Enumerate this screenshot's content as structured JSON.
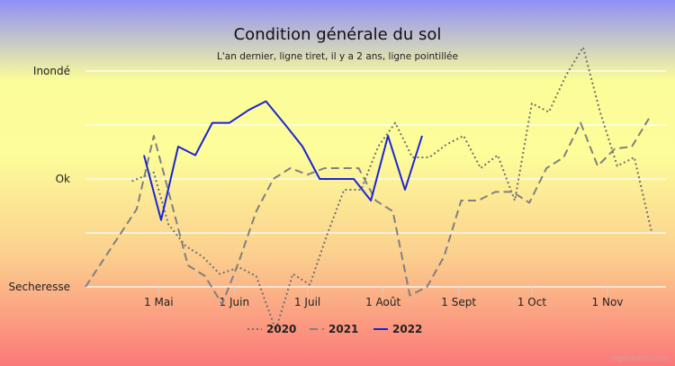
{
  "chart_data": {
    "type": "line",
    "title": "Condition générale du sol",
    "subtitle": "L'an dernier, ligne tiret, il y a 2 ans, ligne pointillée",
    "credit": "Highcharts.com",
    "y_categories": [
      "Inondé",
      "Ok",
      "Secheresse"
    ],
    "ylim": [
      -1,
      1
    ],
    "xlim": [
      "2022-04-01",
      "2022-11-25"
    ],
    "x_tick_labels": [
      "1 Mai",
      "1 Juin",
      "1 Juil",
      "1 Août",
      "1 Sept",
      "1 Oct",
      "1 Nov"
    ],
    "x_tick_dates": [
      "2022-05-01",
      "2022-06-01",
      "2022-07-01",
      "2022-08-01",
      "2022-09-01",
      "2022-10-01",
      "2022-11-01"
    ],
    "grid": true,
    "legend_position": "bottom-center",
    "series": [
      {
        "name": "2020",
        "style": "dotted",
        "color": "#707070",
        "points": [
          [
            "2022-04-20",
            -0.02
          ],
          [
            "2022-04-29",
            0.06
          ],
          [
            "2022-05-05",
            -0.42
          ],
          [
            "2022-05-12",
            -0.62
          ],
          [
            "2022-05-19",
            -0.72
          ],
          [
            "2022-05-26",
            -0.88
          ],
          [
            "2022-06-03",
            -0.82
          ],
          [
            "2022-06-10",
            -0.9
          ],
          [
            "2022-06-18",
            -1.4
          ],
          [
            "2022-06-25",
            -0.88
          ],
          [
            "2022-07-02",
            -0.98
          ],
          [
            "2022-07-09",
            -0.52
          ],
          [
            "2022-07-16",
            -0.1
          ],
          [
            "2022-07-23",
            -0.1
          ],
          [
            "2022-07-30",
            0.3
          ],
          [
            "2022-08-06",
            0.52
          ],
          [
            "2022-08-13",
            0.2
          ],
          [
            "2022-08-20",
            0.2
          ],
          [
            "2022-08-27",
            0.32
          ],
          [
            "2022-09-03",
            0.4
          ],
          [
            "2022-09-10",
            0.1
          ],
          [
            "2022-09-17",
            0.22
          ],
          [
            "2022-09-24",
            -0.2
          ],
          [
            "2022-10-01",
            0.7
          ],
          [
            "2022-10-08",
            0.62
          ],
          [
            "2022-10-15",
            0.96
          ],
          [
            "2022-10-22",
            1.22
          ],
          [
            "2022-10-29",
            0.62
          ],
          [
            "2022-11-05",
            0.12
          ],
          [
            "2022-11-12",
            0.2
          ],
          [
            "2022-11-19",
            -0.48
          ]
        ]
      },
      {
        "name": "2021",
        "style": "dashed",
        "color": "#808080",
        "points": [
          [
            "2022-04-01",
            -1.0
          ],
          [
            "2022-04-08",
            -0.76
          ],
          [
            "2022-04-15",
            -0.52
          ],
          [
            "2022-04-22",
            -0.28
          ],
          [
            "2022-04-29",
            0.4
          ],
          [
            "2022-05-06",
            -0.2
          ],
          [
            "2022-05-13",
            -0.8
          ],
          [
            "2022-05-20",
            -0.9
          ],
          [
            "2022-05-27",
            -1.16
          ],
          [
            "2022-06-03",
            -0.76
          ],
          [
            "2022-06-10",
            -0.3
          ],
          [
            "2022-06-17",
            0.0
          ],
          [
            "2022-06-24",
            0.1
          ],
          [
            "2022-07-01",
            0.04
          ],
          [
            "2022-07-08",
            0.1
          ],
          [
            "2022-07-15",
            0.1
          ],
          [
            "2022-07-22",
            0.1
          ],
          [
            "2022-07-29",
            -0.2
          ],
          [
            "2022-08-05",
            -0.3
          ],
          [
            "2022-08-12",
            -1.08
          ],
          [
            "2022-08-19",
            -1.0
          ],
          [
            "2022-08-26",
            -0.72
          ],
          [
            "2022-09-02",
            -0.2
          ],
          [
            "2022-09-09",
            -0.2
          ],
          [
            "2022-09-16",
            -0.12
          ],
          [
            "2022-09-23",
            -0.12
          ],
          [
            "2022-09-30",
            -0.22
          ],
          [
            "2022-10-07",
            0.1
          ],
          [
            "2022-10-14",
            0.2
          ],
          [
            "2022-10-21",
            0.52
          ],
          [
            "2022-10-28",
            0.12
          ],
          [
            "2022-11-04",
            0.28
          ],
          [
            "2022-11-11",
            0.3
          ],
          [
            "2022-11-18",
            0.56
          ]
        ]
      },
      {
        "name": "2022",
        "style": "solid",
        "color": "#1a25d6",
        "points": [
          [
            "2022-04-25",
            0.22
          ],
          [
            "2022-05-02",
            -0.38
          ],
          [
            "2022-05-09",
            0.3
          ],
          [
            "2022-05-16",
            0.22
          ],
          [
            "2022-05-23",
            0.52
          ],
          [
            "2022-05-30",
            0.52
          ],
          [
            "2022-06-07",
            0.64
          ],
          [
            "2022-06-14",
            0.72
          ],
          [
            "2022-06-22",
            0.5
          ],
          [
            "2022-06-29",
            0.3
          ],
          [
            "2022-07-06",
            0.0
          ],
          [
            "2022-07-13",
            0.0
          ],
          [
            "2022-07-20",
            0.0
          ],
          [
            "2022-07-27",
            -0.2
          ],
          [
            "2022-08-03",
            0.4
          ],
          [
            "2022-08-10",
            -0.1
          ],
          [
            "2022-08-17",
            0.4
          ]
        ]
      }
    ]
  }
}
